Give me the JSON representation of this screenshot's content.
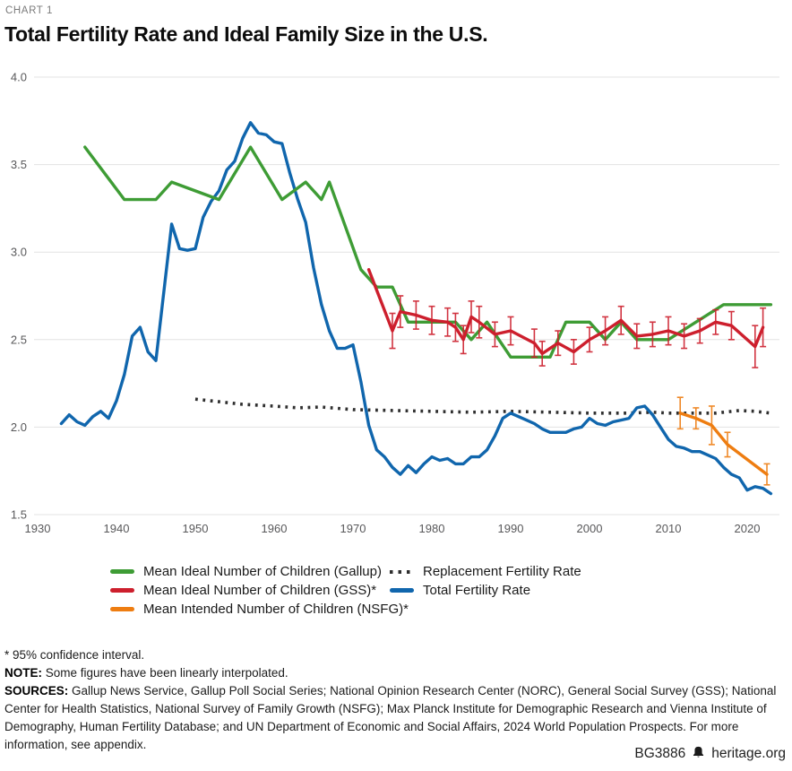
{
  "header": {
    "kicker": "CHART 1",
    "title": "Total Fertility Rate and Ideal Family Size in the U.S."
  },
  "chart_data": {
    "type": "line",
    "title": "Total Fertility Rate and Ideal Family Size in the U.S.",
    "grid": "horizontal",
    "legend_position": "bottom",
    "x_axis": {
      "ticks": [
        1930,
        1940,
        1950,
        1960,
        1970,
        1980,
        1990,
        2000,
        2010,
        2020
      ],
      "range": [
        1930,
        2024
      ]
    },
    "y_axis": {
      "ticks": [
        "4.0",
        "3.5",
        "3.0",
        "2.5",
        "2.0",
        "1.5"
      ],
      "range": [
        1.5,
        4.0
      ]
    },
    "series": [
      {
        "id": "gallup",
        "name": "Mean Ideal Number of Children (Gallup)",
        "color": "#3e9c35",
        "style": "solid",
        "points": [
          [
            1936,
            3.6
          ],
          [
            1941,
            3.3
          ],
          [
            1945,
            3.3
          ],
          [
            1947,
            3.4
          ],
          [
            1953,
            3.3
          ],
          [
            1957,
            3.6
          ],
          [
            1961,
            3.3
          ],
          [
            1964,
            3.4
          ],
          [
            1966,
            3.3
          ],
          [
            1967,
            3.4
          ],
          [
            1971,
            2.9
          ],
          [
            1973,
            2.8
          ],
          [
            1975,
            2.8
          ],
          [
            1977,
            2.6
          ],
          [
            1983,
            2.6
          ],
          [
            1985,
            2.5
          ],
          [
            1987,
            2.6
          ],
          [
            1990,
            2.4
          ],
          [
            1995,
            2.4
          ],
          [
            1997,
            2.6
          ],
          [
            2000,
            2.6
          ],
          [
            2002,
            2.5
          ],
          [
            2004,
            2.6
          ],
          [
            2006,
            2.5
          ],
          [
            2010,
            2.5
          ],
          [
            2017,
            2.7
          ],
          [
            2023,
            2.7
          ]
        ]
      },
      {
        "id": "gss",
        "name": "Mean Ideal Number of Children (GSS)*",
        "color": "#cd1f2d",
        "style": "solid",
        "points": [
          [
            1972,
            2.9
          ],
          [
            1975,
            2.55,
            0.1
          ],
          [
            1976,
            2.66,
            0.09
          ],
          [
            1978,
            2.64,
            0.08
          ],
          [
            1980,
            2.61,
            0.08
          ],
          [
            1982,
            2.6,
            0.08
          ],
          [
            1983,
            2.57,
            0.08
          ],
          [
            1984,
            2.5,
            0.08
          ],
          [
            1985,
            2.63,
            0.09
          ],
          [
            1986,
            2.6,
            0.09
          ],
          [
            1988,
            2.53,
            0.07
          ],
          [
            1990,
            2.55,
            0.08
          ],
          [
            1993,
            2.48,
            0.08
          ],
          [
            1994,
            2.42,
            0.07
          ],
          [
            1996,
            2.48,
            0.07
          ],
          [
            1998,
            2.43,
            0.07
          ],
          [
            2000,
            2.5,
            0.07
          ],
          [
            2002,
            2.55,
            0.08
          ],
          [
            2004,
            2.61,
            0.08
          ],
          [
            2006,
            2.52,
            0.07
          ],
          [
            2008,
            2.53,
            0.07
          ],
          [
            2010,
            2.55,
            0.08
          ],
          [
            2012,
            2.52,
            0.07
          ],
          [
            2014,
            2.55,
            0.07
          ],
          [
            2016,
            2.6,
            0.07
          ],
          [
            2018,
            2.58,
            0.08
          ],
          [
            2021,
            2.46,
            0.12
          ],
          [
            2022,
            2.57,
            0.11
          ]
        ]
      },
      {
        "id": "nsfg",
        "name": "Mean Intended Number of Children (NSFG)*",
        "color": "#ee7d11",
        "style": "solid",
        "points": [
          [
            2011.5,
            2.08,
            0.09
          ],
          [
            2013.5,
            2.05,
            0.06
          ],
          [
            2015.5,
            2.01,
            0.11
          ],
          [
            2017.5,
            1.9,
            0.07
          ],
          [
            2022.5,
            1.73,
            0.06
          ]
        ]
      },
      {
        "id": "replacement",
        "name": "Replacement Fertility Rate",
        "color": "#2f2f2f",
        "style": "dotted",
        "points": [
          [
            1950,
            2.16
          ],
          [
            1953,
            2.145
          ],
          [
            1956,
            2.13
          ],
          [
            1960,
            2.12
          ],
          [
            1963,
            2.11
          ],
          [
            1966,
            2.115
          ],
          [
            1970,
            2.1
          ],
          [
            1975,
            2.095
          ],
          [
            1980,
            2.09
          ],
          [
            1985,
            2.085
          ],
          [
            1990,
            2.09
          ],
          [
            1995,
            2.085
          ],
          [
            2000,
            2.08
          ],
          [
            2005,
            2.08
          ],
          [
            2008,
            2.085
          ],
          [
            2010,
            2.08
          ],
          [
            2013,
            2.08
          ],
          [
            2016,
            2.08
          ],
          [
            2019,
            2.095
          ],
          [
            2021,
            2.09
          ],
          [
            2023,
            2.08
          ]
        ]
      },
      {
        "id": "tfr",
        "name": "Total Fertility Rate",
        "color": "#1066ad",
        "style": "solid",
        "points": [
          [
            1933,
            2.02
          ],
          [
            1934,
            2.07
          ],
          [
            1935,
            2.03
          ],
          [
            1936,
            2.01
          ],
          [
            1937,
            2.06
          ],
          [
            1938,
            2.09
          ],
          [
            1939,
            2.05
          ],
          [
            1940,
            2.15
          ],
          [
            1941,
            2.3
          ],
          [
            1942,
            2.52
          ],
          [
            1943,
            2.57
          ],
          [
            1944,
            2.43
          ],
          [
            1945,
            2.38
          ],
          [
            1946,
            2.77
          ],
          [
            1947,
            3.16
          ],
          [
            1948,
            3.02
          ],
          [
            1949,
            3.01
          ],
          [
            1950,
            3.02
          ],
          [
            1951,
            3.2
          ],
          [
            1952,
            3.29
          ],
          [
            1953,
            3.35
          ],
          [
            1954,
            3.47
          ],
          [
            1955,
            3.52
          ],
          [
            1956,
            3.65
          ],
          [
            1957,
            3.74
          ],
          [
            1958,
            3.68
          ],
          [
            1959,
            3.67
          ],
          [
            1960,
            3.63
          ],
          [
            1961,
            3.62
          ],
          [
            1962,
            3.45
          ],
          [
            1963,
            3.3
          ],
          [
            1964,
            3.17
          ],
          [
            1965,
            2.91
          ],
          [
            1966,
            2.7
          ],
          [
            1967,
            2.55
          ],
          [
            1968,
            2.45
          ],
          [
            1969,
            2.45
          ],
          [
            1970,
            2.47
          ],
          [
            1971,
            2.26
          ],
          [
            1972,
            2.01
          ],
          [
            1973,
            1.87
          ],
          [
            1974,
            1.83
          ],
          [
            1975,
            1.77
          ],
          [
            1976,
            1.73
          ],
          [
            1977,
            1.78
          ],
          [
            1978,
            1.74
          ],
          [
            1979,
            1.79
          ],
          [
            1980,
            1.83
          ],
          [
            1981,
            1.81
          ],
          [
            1982,
            1.82
          ],
          [
            1983,
            1.79
          ],
          [
            1984,
            1.79
          ],
          [
            1985,
            1.83
          ],
          [
            1986,
            1.83
          ],
          [
            1987,
            1.87
          ],
          [
            1988,
            1.95
          ],
          [
            1989,
            2.05
          ],
          [
            1990,
            2.08
          ],
          [
            1991,
            2.06
          ],
          [
            1992,
            2.04
          ],
          [
            1993,
            2.02
          ],
          [
            1994,
            1.99
          ],
          [
            1995,
            1.97
          ],
          [
            1996,
            1.97
          ],
          [
            1997,
            1.97
          ],
          [
            1998,
            1.99
          ],
          [
            1999,
            2.0
          ],
          [
            2000,
            2.05
          ],
          [
            2001,
            2.02
          ],
          [
            2002,
            2.01
          ],
          [
            2003,
            2.03
          ],
          [
            2004,
            2.04
          ],
          [
            2005,
            2.05
          ],
          [
            2006,
            2.11
          ],
          [
            2007,
            2.12
          ],
          [
            2008,
            2.07
          ],
          [
            2009,
            2.0
          ],
          [
            2010,
            1.93
          ],
          [
            2011,
            1.89
          ],
          [
            2012,
            1.88
          ],
          [
            2013,
            1.86
          ],
          [
            2014,
            1.86
          ],
          [
            2015,
            1.84
          ],
          [
            2016,
            1.82
          ],
          [
            2017,
            1.77
          ],
          [
            2018,
            1.73
          ],
          [
            2019,
            1.71
          ],
          [
            2020,
            1.64
          ],
          [
            2021,
            1.66
          ],
          [
            2022,
            1.65
          ],
          [
            2023,
            1.62
          ]
        ]
      }
    ]
  },
  "notes": {
    "footnote": "* 95% confidence interval.",
    "note_label": "NOTE:",
    "note_text": " Some figures have been linearly interpolated.",
    "sources_label": "SOURCES:",
    "sources_text": " Gallup News Service, Gallup Poll Social Series; National Opinion Research Center (NORC), General Social Survey (GSS); National Center for Health Statistics, National Survey of Family Growth (NSFG); Max Planck Institute for Demographic Research and Vienna Institute of Demography, Human Fertility Database; and UN Department of Economic and Social Affairs, 2024 World Population Prospects. For more information, see appendix."
  },
  "footer": {
    "document_id": "BG3886",
    "site": "heritage.org",
    "logo": "heritage-bell-icon"
  }
}
